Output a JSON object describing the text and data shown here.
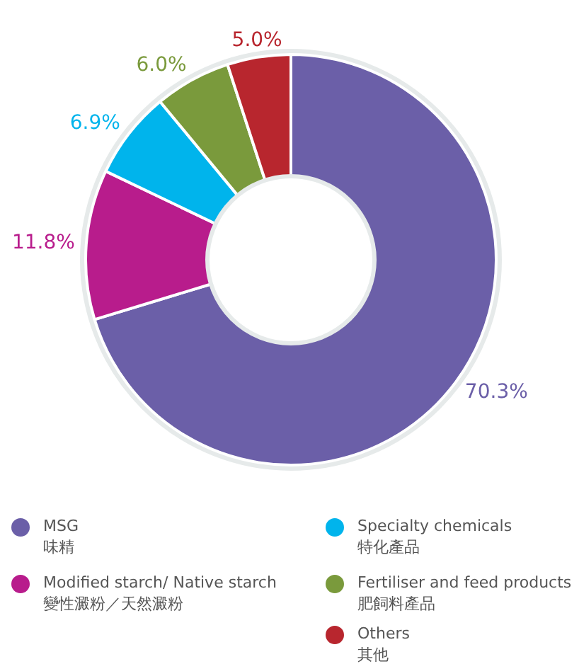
{
  "chart_data": {
    "type": "donut",
    "categories": [
      "MSG\n味精",
      "Modified starch/ Native starch\n變性澱粉／天然澱粉",
      "Specialty chemicals\n特化產品",
      "Fertiliser and feed products\n肥飼料產品",
      "Others\n其他"
    ],
    "values": [
      70.3,
      11.8,
      6.9,
      6.0,
      5.0
    ],
    "colors": [
      "#6b5fa8",
      "#b81c8c",
      "#00b4ec",
      "#7a9a3c",
      "#b8262e"
    ],
    "value_labels": [
      "70.3%",
      "11.8%",
      "6.9%",
      "6.0%",
      "5.0%"
    ],
    "legend": "bottom"
  }
}
